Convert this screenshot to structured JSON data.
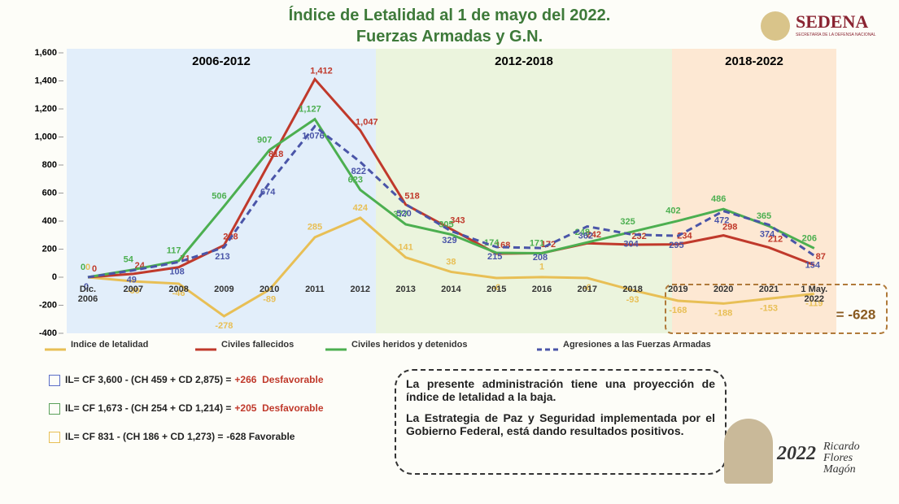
{
  "header": {
    "title": "Índice de Letalidad al 1 de mayo del 2022.",
    "subtitle": "Fuerzas Armadas y G.N."
  },
  "logo": {
    "name": "SEDENA",
    "subtitle": "SECRETARÍA DE LA DEFENSA NACIONAL"
  },
  "chart_data": {
    "type": "line",
    "categories": [
      "Dic. 2006",
      "2007",
      "2008",
      "2009",
      "2010",
      "2011",
      "2012",
      "2013",
      "2014",
      "2015",
      "2016",
      "2017",
      "2018",
      "2019",
      "2020",
      "2021",
      "1 May. 2022"
    ],
    "series": [
      {
        "name": "Indice de letalidad",
        "color": "#e8bf55",
        "dashed": false,
        "values": [
          0,
          -30,
          -46,
          -278,
          -89,
          285,
          424,
          141,
          38,
          -6,
          1,
          -6,
          -93,
          -168,
          -188,
          -153,
          -119
        ]
      },
      {
        "name": "Civiles fallecidos",
        "color": "#c0392b",
        "dashed": false,
        "values": [
          0,
          24,
          71,
          228,
          818,
          1412,
          1047,
          518,
          343,
          168,
          172,
          242,
          232,
          234,
          298,
          212,
          87
        ],
        "value_labels": [
          "0",
          "24",
          "71",
          "228",
          "818",
          "1,412",
          "1,047",
          "518",
          "343",
          "168",
          "172",
          "242",
          "232",
          "234",
          "298",
          "212",
          "87"
        ]
      },
      {
        "name": "Civiles heridos y detenidos",
        "color": "#4caf50",
        "dashed": false,
        "values": [
          0,
          54,
          117,
          506,
          907,
          1127,
          623,
          377,
          305,
          174,
          171,
          248,
          325,
          402,
          486,
          365,
          206
        ],
        "value_labels": [
          "0",
          "54",
          "117",
          "506",
          "907",
          "1,127",
          "623",
          "377",
          "305",
          "174",
          "171",
          "248",
          "325",
          "402",
          "486",
          "365",
          "206"
        ]
      },
      {
        "name": "Agresiones a las Fuerzas Armadas",
        "color": "#4a55a8",
        "dashed": true,
        "values": [
          0,
          49,
          108,
          213,
          674,
          1076,
          822,
          520,
          329,
          215,
          208,
          362,
          304,
          295,
          472,
          374,
          154
        ],
        "value_labels": [
          "0",
          "49",
          "108",
          "213",
          "674",
          "1,076",
          "822",
          "520",
          "329",
          "215",
          "208",
          "362",
          "304",
          "295",
          "472",
          "374",
          "154"
        ]
      }
    ],
    "ylim": [
      -400,
      1600
    ],
    "yticks": [
      -400,
      -200,
      0,
      200,
      400,
      600,
      800,
      {
        "value": 1000,
        "label": "1,000"
      },
      {
        "value": 1200,
        "label": "1,200"
      },
      {
        "value": 1400,
        "label": "1,400"
      },
      {
        "value": 1600,
        "label": "1,600"
      }
    ],
    "periods": [
      "2006-2012",
      "2012-2018",
      "2018-2022"
    ],
    "annotation": "= -628"
  },
  "formulas": [
    {
      "text": "IL= CF 3,600 - (CH 459 + CD 2,875) =",
      "result": "+266  Desfavorable",
      "color": "#c0392b"
    },
    {
      "text": "IL= CF 1,673 - (CH 254 + CD 1,214) =",
      "result": "+205  Desfavorable",
      "color": "#c0392b"
    },
    {
      "text": "IL= CF 831 - (CH 186 + CD 1,273) =",
      "result": "-628 Favorable",
      "color": "#222222"
    }
  ],
  "message": [
    "La presente administración tiene una proyección de índice de letalidad a la baja.",
    "La Estrategia de Paz y Seguridad implementada por el Gobierno Federal, está dando resultados positivos."
  ],
  "badge": {
    "year": "2022",
    "name": "Ricardo Flores Magón"
  }
}
